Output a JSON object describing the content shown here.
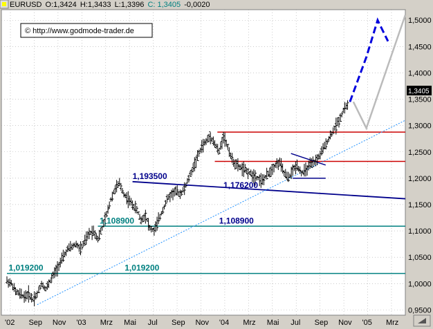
{
  "header": {
    "symbol": "EURUSD",
    "open": "O:1,3424",
    "high": "H:1,3433",
    "low": "L:1,3396",
    "close": "C: 1,3405",
    "change": "-0,0020"
  },
  "copyright": "© http://www.godmode-trader.de",
  "colors": {
    "background": "#ffffff",
    "frame": "#d4d0c8",
    "grid": "#aaaaaa",
    "bars": "#000000",
    "support_resistance": "#cc0000",
    "trendline": "#00008b",
    "horizontal_teal": "#008080",
    "uptrend": "#1e90ff",
    "forecast_blue": "#0000dd",
    "forecast_gray": "#bbbbbb",
    "label_teal": "#008080",
    "label_navy": "#00008b"
  },
  "chart_data": {
    "type": "ohlc",
    "instrument": "EURUSD",
    "x_tick_labels": [
      "'02",
      "Sep",
      "Nov",
      "'03",
      "Mrz",
      "Mai",
      "Jul",
      "Sep",
      "Nov",
      "'04",
      "Mrz",
      "Mai",
      "Jul",
      "Sep",
      "Nov",
      "'05",
      "Mrz"
    ],
    "ylim": [
      0.94,
      1.52
    ],
    "y_tick_labels": [
      "1,5000",
      "1,4500",
      "1,4000",
      "1,3500",
      "1,3000",
      "1,2500",
      "1,2000",
      "1,1500",
      "1,1000",
      "1,0500",
      "1,0000",
      "0,9500"
    ],
    "y_ticks": [
      1.5,
      1.45,
      1.4,
      1.35,
      1.3,
      1.25,
      1.2,
      1.15,
      1.1,
      1.05,
      1.0,
      0.95
    ],
    "last_price": "1,3405",
    "grid": true,
    "price_path": [
      [
        0,
        1.005
      ],
      [
        0.5,
        1.0
      ],
      [
        1,
        0.985
      ],
      [
        1.5,
        0.98
      ],
      [
        2,
        0.975
      ],
      [
        2.5,
        0.98
      ],
      [
        3,
        0.97
      ],
      [
        3.5,
        0.98
      ],
      [
        4,
        1.0
      ],
      [
        4.5,
        0.99
      ],
      [
        5,
        1.005
      ],
      [
        5.5,
        1.02
      ],
      [
        6,
        1.035
      ],
      [
        6.5,
        1.05
      ],
      [
        7,
        1.065
      ],
      [
        7.5,
        1.07
      ],
      [
        8,
        1.075
      ],
      [
        8.5,
        1.065
      ],
      [
        9,
        1.08
      ],
      [
        9.5,
        1.095
      ],
      [
        10,
        1.1
      ],
      [
        10.5,
        1.085
      ],
      [
        11,
        1.105
      ],
      [
        11.5,
        1.13
      ],
      [
        12,
        1.16
      ],
      [
        12.5,
        1.18
      ],
      [
        13,
        1.19
      ],
      [
        13.5,
        1.17
      ],
      [
        14,
        1.16
      ],
      [
        14.5,
        1.15
      ],
      [
        15,
        1.14
      ],
      [
        15.5,
        1.12
      ],
      [
        16,
        1.13
      ],
      [
        16.5,
        1.105
      ],
      [
        17,
        1.1
      ],
      [
        17.5,
        1.12
      ],
      [
        18,
        1.14
      ],
      [
        18.5,
        1.16
      ],
      [
        19,
        1.17
      ],
      [
        19.5,
        1.175
      ],
      [
        20,
        1.17
      ],
      [
        20.5,
        1.18
      ],
      [
        21,
        1.2
      ],
      [
        21.5,
        1.22
      ],
      [
        22,
        1.24
      ],
      [
        22.5,
        1.26
      ],
      [
        23,
        1.27
      ],
      [
        23.5,
        1.28
      ],
      [
        24,
        1.265
      ],
      [
        24.5,
        1.25
      ],
      [
        25,
        1.28
      ],
      [
        25.5,
        1.26
      ],
      [
        26,
        1.235
      ],
      [
        26.5,
        1.225
      ],
      [
        27,
        1.22
      ],
      [
        27.5,
        1.215
      ],
      [
        28,
        1.21
      ],
      [
        28.5,
        1.205
      ],
      [
        29,
        1.2
      ],
      [
        29.5,
        1.195
      ],
      [
        30,
        1.205
      ],
      [
        30.5,
        1.215
      ],
      [
        31,
        1.225
      ],
      [
        31.5,
        1.23
      ],
      [
        32,
        1.21
      ],
      [
        32.5,
        1.2
      ],
      [
        33,
        1.215
      ],
      [
        33.5,
        1.225
      ],
      [
        34,
        1.21
      ],
      [
        34.5,
        1.215
      ],
      [
        35,
        1.225
      ],
      [
        35.5,
        1.23
      ],
      [
        36,
        1.24
      ],
      [
        36.5,
        1.255
      ],
      [
        37,
        1.27
      ],
      [
        37.5,
        1.285
      ],
      [
        38,
        1.3
      ],
      [
        38.5,
        1.315
      ],
      [
        39,
        1.335
      ],
      [
        39.5,
        1.34
      ]
    ],
    "horizontal_lines": [
      {
        "value": 1.2875,
        "start_x": 24.3,
        "end_x": 46,
        "color": "support_resistance"
      },
      {
        "value": 1.232,
        "start_x": 24.0,
        "end_x": 46,
        "color": "support_resistance"
      },
      {
        "value": 1.1089,
        "start_x": 10.5,
        "end_x": 46,
        "color": "horizontal_teal"
      },
      {
        "value": 1.0192,
        "start_x": 0,
        "end_x": 46,
        "color": "horizontal_teal"
      }
    ],
    "trendlines": [
      {
        "from": [
          14.5,
          1.1935
        ],
        "to": [
          46,
          1.161
        ],
        "color": "trendline"
      },
      {
        "from": [
          3.5,
          0.96
        ],
        "to": [
          46,
          1.31
        ],
        "color": "uptrend",
        "dashed": true
      }
    ],
    "triangle": [
      [
        32.8,
        1.247
      ],
      [
        36.8,
        1.225
      ],
      [
        33.0,
        1.2
      ],
      [
        36.8,
        1.2
      ]
    ],
    "forecast_blue": [
      [
        39.6,
        1.345
      ],
      [
        41.5,
        1.43
      ],
      [
        42.8,
        1.5
      ],
      [
        44,
        1.46
      ]
    ],
    "forecast_gray": [
      [
        40,
        1.345
      ],
      [
        41.5,
        1.295
      ],
      [
        46,
        1.51
      ]
    ],
    "annotations": [
      {
        "text": "1,193500",
        "x": 14.5,
        "y": 1.1935,
        "color": "label_navy"
      },
      {
        "text": "1,176200",
        "x": 25.0,
        "y": 1.1762,
        "color": "label_navy"
      },
      {
        "text": "1,108900",
        "x": 10.7,
        "y": 1.1089,
        "color": "label_teal"
      },
      {
        "text": "1,108900",
        "x": 24.5,
        "y": 1.1089,
        "color": "label_navy"
      },
      {
        "text": "1,019200",
        "x": 0.2,
        "y": 1.0192,
        "color": "label_teal"
      },
      {
        "text": "1,019200",
        "x": 13.6,
        "y": 1.0192,
        "color": "label_teal"
      }
    ]
  }
}
